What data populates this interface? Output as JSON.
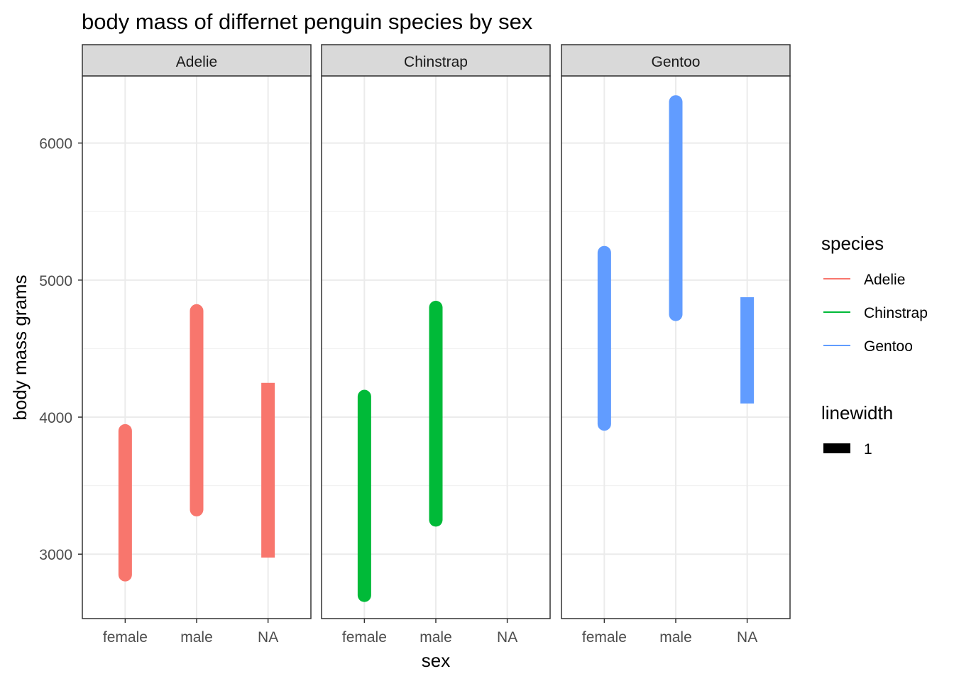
{
  "chart_data": {
    "type": "range-segment",
    "title": "body mass of differnet penguin species by sex",
    "xlabel": "sex",
    "ylabel": "body mass grams",
    "facets": [
      "Adelie",
      "Chinstrap",
      "Gentoo"
    ],
    "categories": [
      "female",
      "male",
      "NA"
    ],
    "ylim": [
      2530,
      6490
    ],
    "y_ticks": [
      3000,
      4000,
      5000,
      6000
    ],
    "y_tick_labels": [
      "3000",
      "4000",
      "5000",
      "6000"
    ],
    "grid": true,
    "colors": {
      "Adelie": "#F8766D",
      "Chinstrap": "#00BA38",
      "Gentoo": "#619CFF"
    },
    "segments": [
      {
        "facet": "Adelie",
        "sex": "female",
        "ymin": 2850,
        "ymax": 3900,
        "rounded": true
      },
      {
        "facet": "Adelie",
        "sex": "male",
        "ymin": 3325,
        "ymax": 4775,
        "rounded": true
      },
      {
        "facet": "Adelie",
        "sex": "NA",
        "ymin": 2975,
        "ymax": 4250,
        "rounded": false
      },
      {
        "facet": "Chinstrap",
        "sex": "female",
        "ymin": 2700,
        "ymax": 4150,
        "rounded": true
      },
      {
        "facet": "Chinstrap",
        "sex": "male",
        "ymin": 3250,
        "ymax": 4800,
        "rounded": true
      },
      {
        "facet": "Gentoo",
        "sex": "female",
        "ymin": 3950,
        "ymax": 5200,
        "rounded": true
      },
      {
        "facet": "Gentoo",
        "sex": "male",
        "ymin": 4750,
        "ymax": 6300,
        "rounded": true
      },
      {
        "facet": "Gentoo",
        "sex": "NA",
        "ymin": 4100,
        "ymax": 4875,
        "rounded": false
      }
    ],
    "legend": {
      "position": "right",
      "species_title": "species",
      "species": [
        "Adelie",
        "Chinstrap",
        "Gentoo"
      ],
      "linewidth_title": "linewidth",
      "linewidth_values": [
        "1"
      ]
    }
  }
}
